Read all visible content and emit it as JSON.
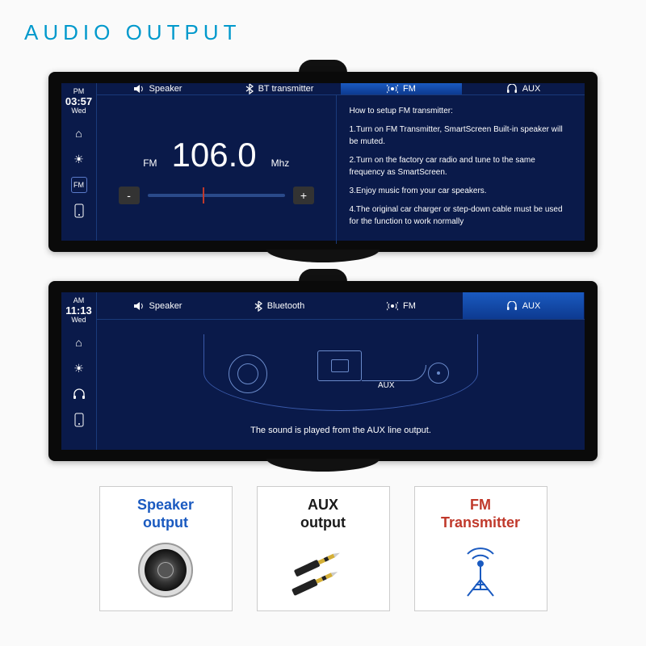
{
  "title": "AUDIO OUTPUT",
  "colors": {
    "title": "#0099cc",
    "screen_bg": "#0a1a4a",
    "tab_active_top": "#1a5ac0",
    "tab_active_bot": "#0d3a90"
  },
  "device1": {
    "time": {
      "ampm": "PM",
      "clock": "03:57",
      "day": "Wed"
    },
    "sideIcons": [
      "home",
      "sun",
      "fm",
      "phone"
    ],
    "tabs": [
      {
        "icon": "speaker",
        "label": "Speaker",
        "active": false
      },
      {
        "icon": "bt",
        "label": "BT transmitter",
        "active": false
      },
      {
        "icon": "fm",
        "label": "FM",
        "active": true
      },
      {
        "icon": "aux",
        "label": "AUX",
        "active": false
      }
    ],
    "fm": {
      "label": "FM",
      "value": "106.0",
      "unit": "Mhz",
      "minus": "-",
      "plus": "+",
      "slider_pos_pct": 40
    },
    "instructions": {
      "heading": "How to setup FM transmitter:",
      "steps": [
        "1.Turn on FM Transmitter, SmartScreen Built-in speaker will be muted.",
        "2.Turn on the factory car radio and tune to the same frequency as SmartScreen.",
        "3.Enjoy music from your car speakers.",
        "4.The original car charger or step-down cable must be used for the function to work normally"
      ]
    }
  },
  "device2": {
    "time": {
      "ampm": "AM",
      "clock": "11:13",
      "day": "Wed"
    },
    "sideIcons": [
      "home",
      "sun",
      "headphones",
      "phone"
    ],
    "tabs": [
      {
        "icon": "speaker",
        "label": "Speaker",
        "active": false
      },
      {
        "icon": "bt",
        "label": "Bluetooth",
        "active": false
      },
      {
        "icon": "fm",
        "label": "FM",
        "active": false
      },
      {
        "icon": "aux",
        "label": "AUX",
        "active": true
      }
    ],
    "aux_label": "AUX",
    "aux_caption": "The sound is played from the AUX line output."
  },
  "cards": [
    {
      "line1": "Speaker",
      "line2": "output",
      "color": "#1a5ac0",
      "icon": "speaker-cone"
    },
    {
      "line1": "AUX",
      "line2": "output",
      "color": "#1a1a1a",
      "icon": "aux-jack"
    },
    {
      "line1": "FM",
      "line2": "Transmitter",
      "color": "#c0392b",
      "icon": "antenna"
    }
  ]
}
